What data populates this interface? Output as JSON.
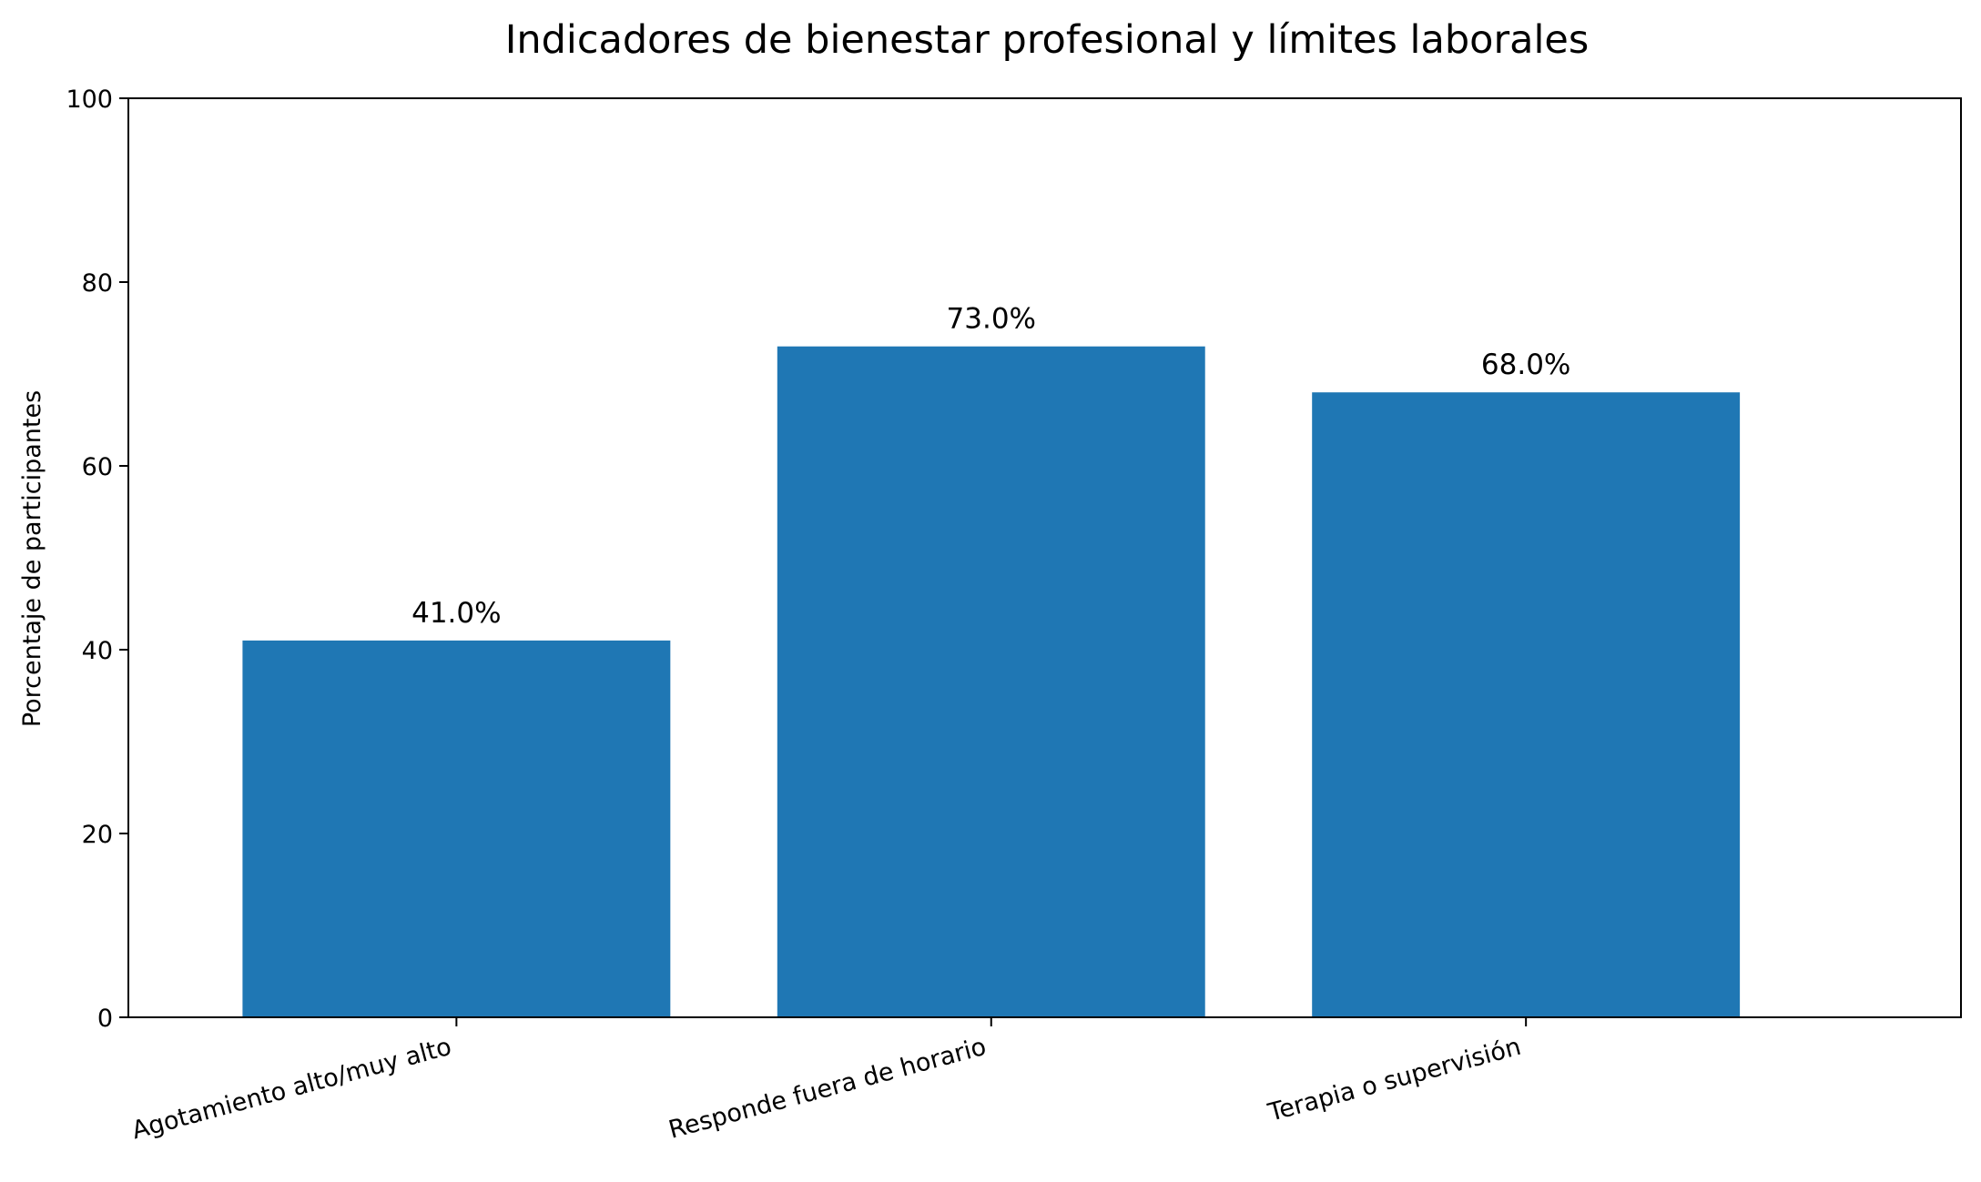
{
  "chart_data": {
    "type": "bar",
    "title": "Indicadores de bienestar profesional y límites laborales",
    "xlabel": "",
    "ylabel": "Porcentaje de participantes",
    "ylim": [
      0,
      100
    ],
    "yticks": [
      0,
      20,
      40,
      60,
      80,
      100
    ],
    "categories": [
      "Agotamiento alto/muy alto",
      "Responde fuera de horario",
      "Terapia o supervisión"
    ],
    "values": [
      41.0,
      73.0,
      68.0
    ],
    "data_labels": [
      "41.0%",
      "73.0%",
      "68.0%"
    ],
    "bar_color": "#1f77b4",
    "grid": false,
    "legend": "none"
  }
}
